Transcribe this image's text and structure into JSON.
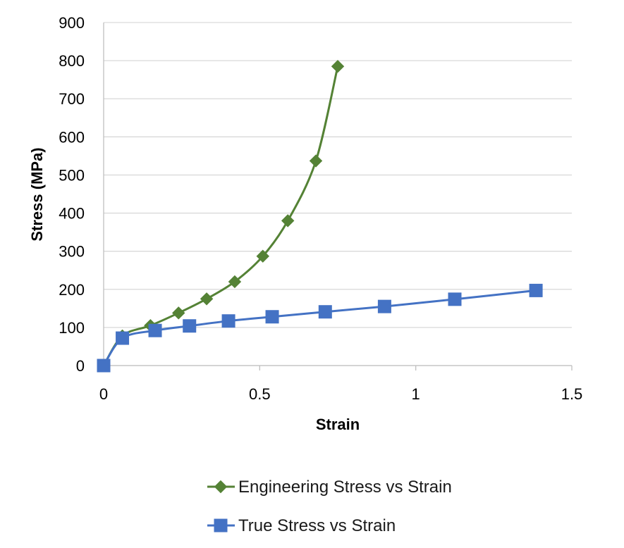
{
  "chart_data": {
    "type": "scatter",
    "title": "",
    "xlabel": "Strain",
    "ylabel": "Stress (MPa)",
    "xlim": [
      0,
      1.5
    ],
    "ylim": [
      0,
      900
    ],
    "x_ticks": [
      "0",
      "0.5",
      "1",
      "1.5"
    ],
    "y_ticks": [
      "0",
      "100",
      "200",
      "300",
      "400",
      "500",
      "600",
      "700",
      "800",
      "900"
    ],
    "grid": "horizontal",
    "legend_position": "bottom",
    "series": [
      {
        "name": "Engineering Stress vs Strain",
        "color": "#548235",
        "marker": "diamond",
        "smooth": true,
        "points": [
          [
            0.0,
            0
          ],
          [
            0.06,
            78
          ],
          [
            0.15,
            105
          ],
          [
            0.24,
            138
          ],
          [
            0.33,
            175
          ],
          [
            0.42,
            220
          ],
          [
            0.51,
            287
          ],
          [
            0.59,
            380
          ],
          [
            0.68,
            537
          ],
          [
            0.75,
            785
          ]
        ]
      },
      {
        "name": "True Stress vs Strain",
        "color": "#4472C4",
        "marker": "square",
        "smooth": true,
        "points": [
          [
            0.0,
            0
          ],
          [
            0.06,
            72
          ],
          [
            0.165,
            92
          ],
          [
            0.275,
            104
          ],
          [
            0.4,
            117
          ],
          [
            0.54,
            128
          ],
          [
            0.71,
            141
          ],
          [
            0.9,
            155
          ],
          [
            1.125,
            174
          ],
          [
            1.385,
            197
          ]
        ]
      }
    ]
  }
}
